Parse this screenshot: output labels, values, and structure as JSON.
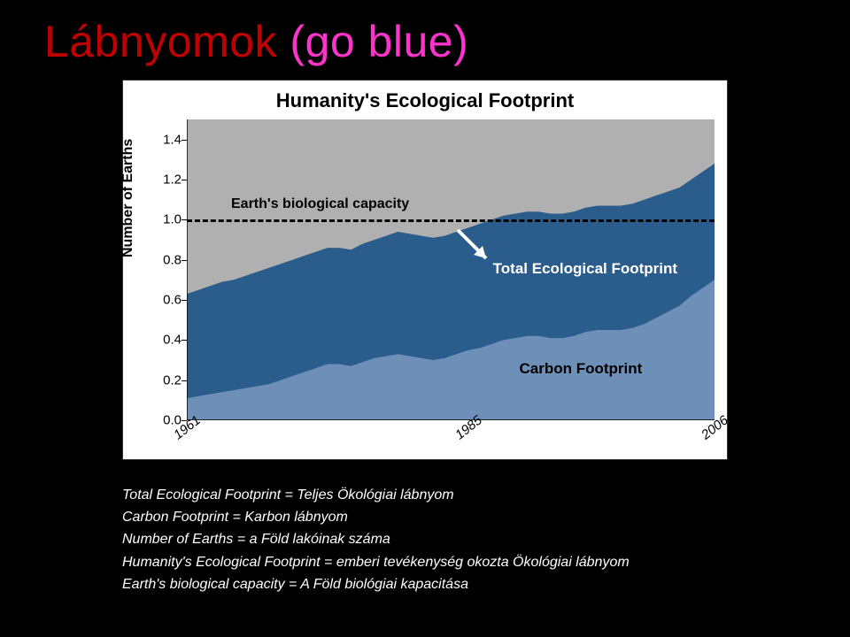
{
  "title_part1": "Lábnyomok ",
  "title_part2": "(go blue)",
  "title_color1": "#c00000",
  "title_color2": "#ff33cc",
  "chart": {
    "type": "area",
    "title": "Humanity's Ecological Footprint",
    "title_fontsize": 22,
    "ylabel": "Number of Earths",
    "ylabel_fontsize": 16,
    "background_color": "#ffffff",
    "plot_bg": "#b0b0b0",
    "ylim": [
      0.0,
      1.5
    ],
    "yticks": [
      0.0,
      0.2,
      0.4,
      0.6,
      0.8,
      1.0,
      1.2,
      1.4
    ],
    "xrange": [
      1961,
      2006
    ],
    "xticks": [
      1961,
      1985,
      2006
    ],
    "series": [
      {
        "name": "Total Ecological Footprint",
        "color": "#2b5d8c",
        "values": [
          0.63,
          0.65,
          0.67,
          0.69,
          0.7,
          0.72,
          0.74,
          0.76,
          0.78,
          0.8,
          0.82,
          0.84,
          0.86,
          0.86,
          0.85,
          0.88,
          0.9,
          0.92,
          0.94,
          0.93,
          0.92,
          0.91,
          0.92,
          0.94,
          0.96,
          0.98,
          1.0,
          1.02,
          1.03,
          1.04,
          1.04,
          1.03,
          1.03,
          1.04,
          1.06,
          1.07,
          1.07,
          1.07,
          1.08,
          1.1,
          1.12,
          1.14,
          1.16,
          1.2,
          1.24,
          1.28
        ]
      },
      {
        "name": "Carbon Footprint",
        "color": "#6d8fb8",
        "values": [
          0.11,
          0.12,
          0.13,
          0.14,
          0.15,
          0.16,
          0.17,
          0.18,
          0.2,
          0.22,
          0.24,
          0.26,
          0.28,
          0.28,
          0.27,
          0.29,
          0.31,
          0.32,
          0.33,
          0.32,
          0.31,
          0.3,
          0.31,
          0.33,
          0.35,
          0.36,
          0.38,
          0.4,
          0.41,
          0.42,
          0.42,
          0.41,
          0.41,
          0.42,
          0.44,
          0.45,
          0.45,
          0.45,
          0.46,
          0.48,
          0.51,
          0.54,
          0.57,
          0.62,
          0.66,
          0.7
        ]
      }
    ],
    "capacity_line": {
      "y": 1.0,
      "label": "Earth's biological capacity",
      "dash": [
        10,
        8
      ],
      "width": 3,
      "color": "#000000"
    },
    "annotations": {
      "capacity": {
        "text": "Earth's biological capacity",
        "fontsize": 16
      },
      "total": {
        "text": "Total Ecological Footprint",
        "fontsize": 17
      },
      "carbon": {
        "text": "Carbon Footprint",
        "fontsize": 17
      }
    },
    "font_family": "Arial"
  },
  "legend": {
    "l1": "Total Ecological Footprint = Teljes Ökológiai lábnyom",
    "l2": "Carbon Footprint = Karbon lábnyom",
    "l3": "Number of Earths = a Föld lakóinak száma",
    "l4": "Humanity's Ecological Footprint = emberi tevékenység okozta Ökológiai lábnyom",
    "l5": "Earth's biological capacity = A Föld biológiai kapacitása",
    "color": "#ffffff",
    "fontsize": 16
  }
}
